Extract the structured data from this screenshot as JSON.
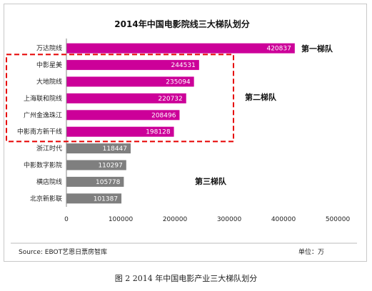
{
  "chart_data": {
    "type": "bar",
    "orientation": "horizontal",
    "title": "2014年中国电影院线三大梯队划分",
    "categories": [
      "万达院线",
      "中影星美",
      "大地院线",
      "上海联和院线",
      "广州金逸珠江",
      "中影南方新干线",
      "浙江时代",
      "中影数字影院",
      "横店院线",
      "北京新影联"
    ],
    "values": [
      420837,
      244531,
      235094,
      220732,
      208496,
      198128,
      118447,
      110297,
      105778,
      101387
    ],
    "bar_colors": [
      "#cc0099",
      "#cc0099",
      "#cc0099",
      "#cc0099",
      "#cc0099",
      "#cc0099",
      "#7f7f7f",
      "#7f7f7f",
      "#7f7f7f",
      "#7f7f7f"
    ],
    "xlim": [
      0,
      500000
    ],
    "xticks": [
      "0",
      "100000",
      "200000",
      "300000",
      "400000",
      "500000"
    ],
    "grid": false,
    "annotations": [
      {
        "text": "第一梯队"
      },
      {
        "text": "第二梯队"
      },
      {
        "text": "第三梯队"
      }
    ],
    "highlight": {
      "style": "dashed red box around second tier",
      "color": "#e60000"
    }
  },
  "source": "Source: EBOT艺恩日票房智库",
  "unit": "单位：万",
  "caption": "图 2 2014 年中国电影产业三大梯队划分"
}
